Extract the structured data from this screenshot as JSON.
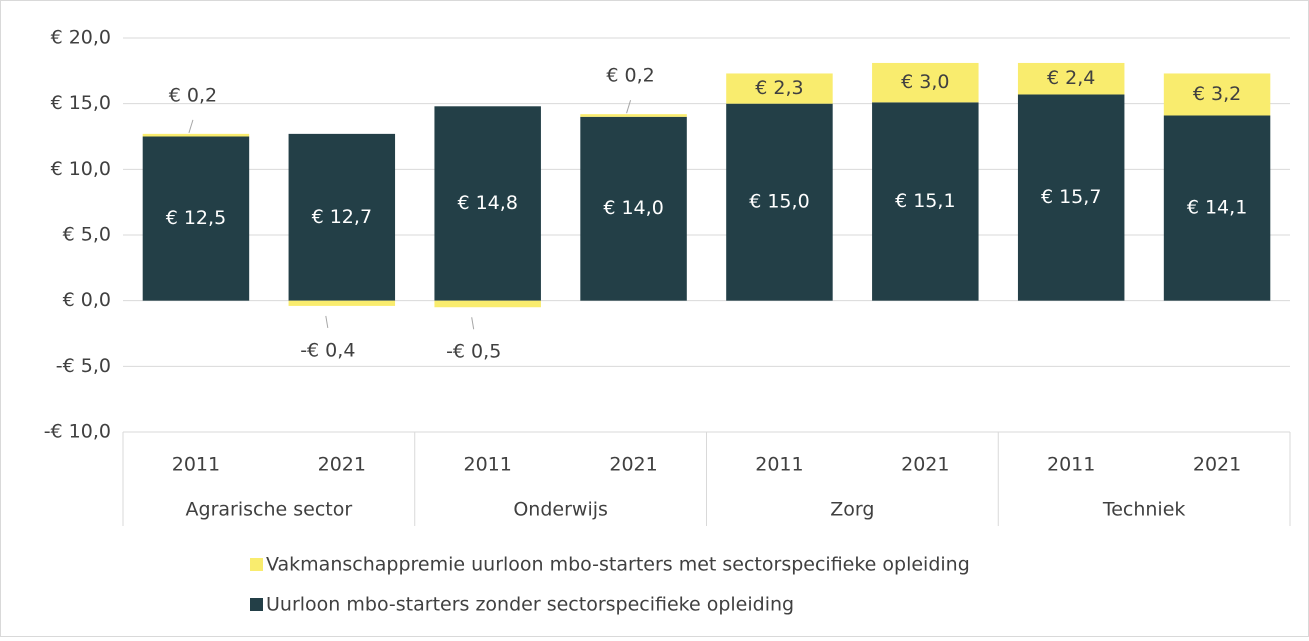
{
  "chart_data": {
    "type": "stacked_bar",
    "categories": [
      "2011",
      "2021",
      "2011",
      "2021",
      "2011",
      "2021",
      "2011",
      "2021"
    ],
    "category_groups": [
      "Agrarische sector",
      "Onderwijs",
      "Zorg",
      "Techniek"
    ],
    "series": [
      {
        "name": "Uurloon mbo-starters zonder sectorspecifieke opleiding",
        "color": "#233f47",
        "values": [
          12.5,
          12.7,
          14.8,
          14.0,
          15.0,
          15.1,
          15.7,
          14.1
        ],
        "value_labels": [
          "€ 12,5",
          "€ 12,7",
          "€ 14,8",
          "€ 14,0",
          "€ 15,0",
          "€ 15,1",
          "€ 15,7",
          "€ 14,1"
        ]
      },
      {
        "name": "Vakmanschappremie uurloon mbo-starters met sectorspecifieke opleiding",
        "color": "#f9ec6e",
        "values": [
          0.2,
          -0.4,
          -0.5,
          0.2,
          2.3,
          3.0,
          2.4,
          3.2
        ],
        "value_labels": [
          "€ 0,2",
          "-€ 0,4",
          "-€ 0,5",
          "€ 0,2",
          "€ 2,3",
          "€ 3,0",
          "€ 2,4",
          "€ 3,2"
        ]
      }
    ],
    "ylim": [
      -10,
      20
    ],
    "yticks": [
      {
        "value": -10,
        "label": "-€ 10,0"
      },
      {
        "value": -5,
        "label": "-€ 5,0"
      },
      {
        "value": 0,
        "label": "€ 0,0"
      },
      {
        "value": 5,
        "label": "€ 5,0"
      },
      {
        "value": 10,
        "label": "€ 10,0"
      },
      {
        "value": 15,
        "label": "€ 15,0"
      },
      {
        "value": 20,
        "label": "€ 20,0"
      }
    ],
    "grid": true,
    "legend": "bottom"
  }
}
